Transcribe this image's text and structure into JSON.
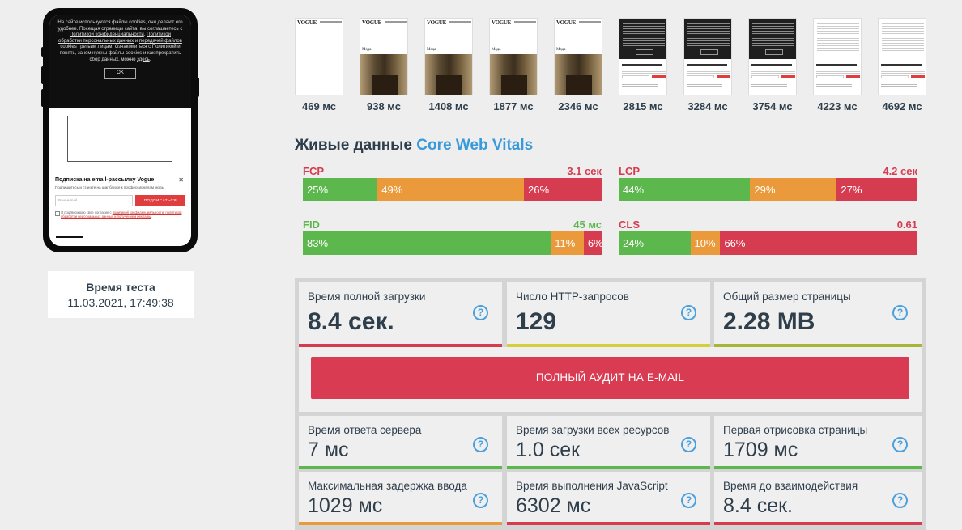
{
  "phone": {
    "cookie_text_1": "На сайте используются файлы cookies, они делают его удобнее. Посещая страницы сайта, вы соглашаетесь с ",
    "cookie_link_1": "Политикой конфиденциальности",
    "cookie_text_2": ", ",
    "cookie_link_2": "Политикой обработки персональных данных",
    "cookie_text_3": " и ",
    "cookie_link_3": "передачей файлов cookies третьим лицам",
    "cookie_text_4": ". Ознакомиться с Политикой и понять, зачем нужны файлы cookies и как прекратить сбор данных, можно ",
    "cookie_link_4": "здесь",
    "cookie_text_5": ".",
    "cookie_ok": "OK",
    "subscribe_title": "Подписка на email-рассылку Vogue",
    "subscribe_text": "Подпишитесь и станьте на шаг ближе к профессионалам моды",
    "email_placeholder": "Ваш e-mail",
    "subscribe_button": "ПОДПИСАТЬСЯ",
    "legal_text": "Я подтверждаю свое согласие с ",
    "legal_link": "политикой конфиденциальности, политикой обработки персональных данных и получением рекламы",
    "legal_end": "."
  },
  "test_time": {
    "title": "Время теста",
    "value": "11.03.2021, 17:49:38"
  },
  "filmstrip": [
    {
      "label": "469 мс",
      "kind": "blank"
    },
    {
      "label": "938 мс",
      "kind": "photo"
    },
    {
      "label": "1408 мс",
      "kind": "photo"
    },
    {
      "label": "1877 мс",
      "kind": "photo"
    },
    {
      "label": "2346 мс",
      "kind": "photo"
    },
    {
      "label": "2815 мс",
      "kind": "dark"
    },
    {
      "label": "3284 мс",
      "kind": "dark"
    },
    {
      "label": "3754 мс",
      "kind": "dark"
    },
    {
      "label": "4223 мс",
      "kind": "light"
    },
    {
      "label": "4692 мс",
      "kind": "light"
    }
  ],
  "filmstrip_logo": "VOGUE",
  "filmstrip_caption": "Мода",
  "vitals": {
    "title_prefix": "Живые данные ",
    "title_link": "Core Web Vitals",
    "metrics": [
      {
        "name": "FCP",
        "value": "3.1 сек",
        "value_status": "bad",
        "good": 25,
        "mid": 49,
        "bad": 26,
        "good_label": "25%",
        "mid_label": "49%",
        "bad_label": "26%"
      },
      {
        "name": "LCP",
        "value": "4.2 сек",
        "value_status": "bad",
        "good": 44,
        "mid": 29,
        "bad": 27,
        "good_label": "44%",
        "mid_label": "29%",
        "bad_label": "27%"
      },
      {
        "name": "FID",
        "value": "45 мс",
        "value_status": "good",
        "good": 83,
        "mid": 11,
        "bad": 6,
        "good_label": "83%",
        "mid_label": "11%",
        "bad_label": "6%"
      },
      {
        "name": "CLS",
        "value": "0.61",
        "value_status": "bad",
        "good": 24,
        "mid": 10,
        "bad": 66,
        "good_label": "24%",
        "mid_label": "10%",
        "bad_label": "66%"
      }
    ]
  },
  "stats_top": [
    {
      "label": "Время полной загрузки",
      "value": "8.4 сек.",
      "status": "bad"
    },
    {
      "label": "Число HTTP-запросов",
      "value": "129",
      "status": "warn"
    },
    {
      "label": "Общий размер страницы",
      "value": "2.28 MB",
      "status": "olive"
    }
  ],
  "audit_button": "ПОЛНЫЙ АУДИТ НА E-MAIL",
  "stats_bottom": [
    {
      "label": "Время ответа сервера",
      "value": "7 мс",
      "status": "good"
    },
    {
      "label": "Время загрузки всех ресурсов",
      "value": "1.0 сек",
      "status": "good"
    },
    {
      "label": "Первая отрисовка страницы",
      "value": "1709 мс",
      "status": "good"
    },
    {
      "label": "Максимальная задержка ввода",
      "value": "1029 мс",
      "status": "mid"
    },
    {
      "label": "Время выполнения JavaScript",
      "value": "6302 мс",
      "status": "bad"
    },
    {
      "label": "Время до взаимодействия",
      "value": "8.4 сек.",
      "status": "bad"
    }
  ],
  "help_glyph": "?",
  "icons": {
    "help": "question-circle-icon",
    "close": "close-icon"
  },
  "colors": {
    "good": "#5cb74d",
    "mid": "#ea9a3a",
    "bad": "#d63c50",
    "warn": "#d4cf3a",
    "olive": "#a9b43a",
    "accent": "#3a9ad9",
    "audit": "#d83b52"
  }
}
